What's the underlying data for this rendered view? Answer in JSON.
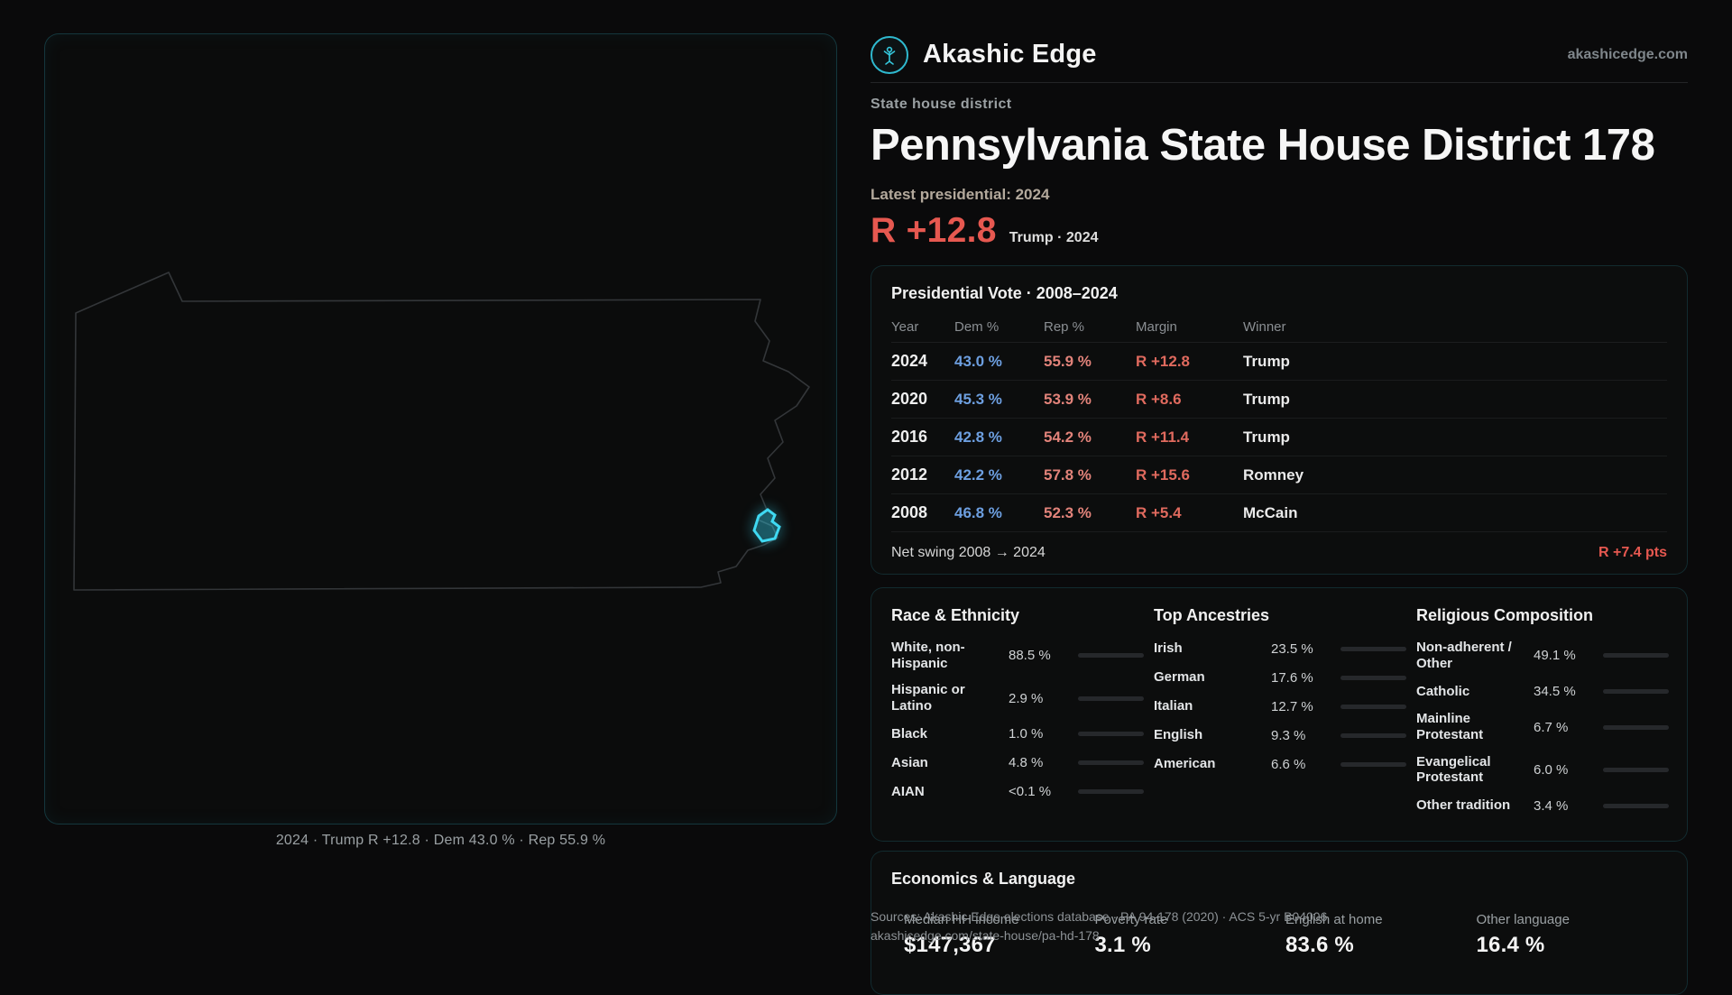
{
  "brand": {
    "name": "Akashic Edge",
    "domain": "akashicedge.com"
  },
  "map": {
    "caption": "2024 · Trump R +12.8 · Dem 43.0 % · Rep 55.9 %"
  },
  "hero": {
    "kicker": "State house district",
    "title": "Pennsylvania State House District 178",
    "latest": "Latest presidential: 2024",
    "margin": "R +12.8",
    "context": "Trump · 2024",
    "accent": "#e65850"
  },
  "presidential": {
    "title": "Presidential Vote · 2008–2024",
    "columns": [
      "Year",
      "Dem %",
      "Rep %",
      "Margin",
      "Winner"
    ],
    "rows": [
      {
        "year": "2024",
        "dem": "43.0 %",
        "rep": "55.9 %",
        "margin": "R +12.8",
        "winner": "Trump"
      },
      {
        "year": "2020",
        "dem": "45.3 %",
        "rep": "53.9 %",
        "margin": "R +8.6",
        "winner": "Trump"
      },
      {
        "year": "2016",
        "dem": "42.8 %",
        "rep": "54.2 %",
        "margin": "R +11.4",
        "winner": "Trump"
      },
      {
        "year": "2012",
        "dem": "42.2 %",
        "rep": "57.8 %",
        "margin": "R +15.6",
        "winner": "Romney"
      },
      {
        "year": "2008",
        "dem": "46.8 %",
        "rep": "52.3 %",
        "margin": "R +5.4",
        "winner": "McCain"
      }
    ],
    "net_swing_label": "Net swing 2008 → 2024",
    "net_swing_value": "R +7.4 pts"
  },
  "demographics": {
    "race": {
      "title": "Race & Ethnicity",
      "rows": [
        {
          "label": "White, non-Hispanic",
          "value": "88.5 %",
          "pct": 88.5,
          "color": "#b9bfc6"
        },
        {
          "label": "Hispanic or Latino",
          "value": "2.9 %",
          "pct": 2.9,
          "color": "#e0a33e"
        },
        {
          "label": "Black",
          "value": "1.0 %",
          "pct": 1.0,
          "color": "#7c74d8"
        },
        {
          "label": "Asian",
          "value": "4.8 %",
          "pct": 4.8,
          "color": "#35c9a3"
        },
        {
          "label": "AIAN",
          "value": "<0.1 %",
          "pct": 0.05,
          "color": "#9aa0a6"
        }
      ]
    },
    "ancestries": {
      "title": "Top Ancestries",
      "rows": [
        {
          "label": "Irish",
          "value": "23.5 %",
          "pct": 23.5,
          "color": "#8e9498"
        },
        {
          "label": "German",
          "value": "17.6 %",
          "pct": 17.6,
          "color": "#8e9498"
        },
        {
          "label": "Italian",
          "value": "12.7 %",
          "pct": 12.7,
          "color": "#8e9498"
        },
        {
          "label": "English",
          "value": "9.3 %",
          "pct": 9.3,
          "color": "#8e9498"
        },
        {
          "label": "American",
          "value": "6.6 %",
          "pct": 6.6,
          "color": "#8e9498"
        }
      ]
    },
    "religion": {
      "title": "Religious Composition",
      "rows": [
        {
          "label": "Non-adherent / Other",
          "value": "49.1 %",
          "pct": 49.1,
          "color": "#aeb4ba"
        },
        {
          "label": "Catholic",
          "value": "34.5 %",
          "pct": 34.5,
          "color": "#e0b23e"
        },
        {
          "label": "Mainline Protestant",
          "value": "6.7 %",
          "pct": 6.7,
          "color": "#4f82e8"
        },
        {
          "label": "Evangelical Protestant",
          "value": "6.0 %",
          "pct": 6.0,
          "color": "#e05c54"
        },
        {
          "label": "Other tradition",
          "value": "3.4 %",
          "pct": 3.4,
          "color": "#9aa0a6"
        }
      ]
    }
  },
  "economics": {
    "title": "Economics & Language",
    "stats": [
      {
        "label": "Median HH income",
        "value": "$147,367"
      },
      {
        "label": "Poverty rate",
        "value": "3.1 %"
      },
      {
        "label": "English at home",
        "value": "83.6 %"
      },
      {
        "label": "Other language",
        "value": "16.4 %"
      }
    ]
  },
  "footer": {
    "sources": "Sources: Akashic Edge elections database · PA 94-178 (2020) · ACS 5-yr B04006",
    "url": "akashicedge.com/state-house/pa-hd-178"
  }
}
